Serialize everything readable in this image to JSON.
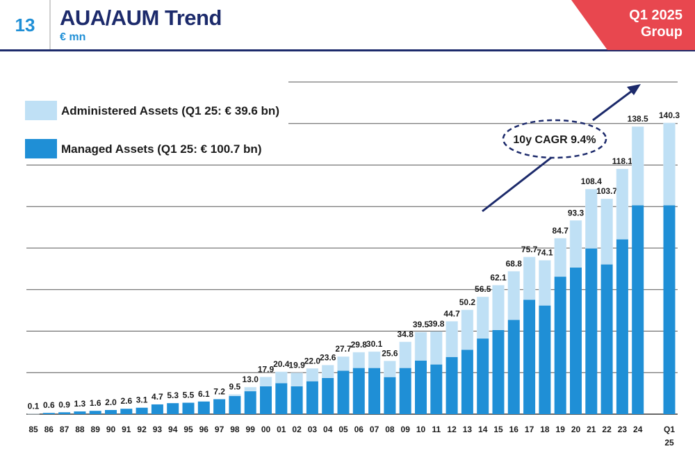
{
  "header": {
    "page_number": "13",
    "title": "AUA/AUM Trend",
    "subtitle": "€ mn",
    "badge_line1": "Q1 2025",
    "badge_line2": "Group"
  },
  "colors": {
    "navy": "#1c2a6b",
    "accent_blue": "#1f8fd6",
    "badge_red": "#e8474f",
    "managed": "#1f8fd6",
    "administered": "#bfe0f5"
  },
  "chart_data": {
    "type": "bar",
    "stacked": true,
    "title": "AUA/AUM Trend",
    "ylabel": "€ mn",
    "xlabel": "",
    "ylim": [
      0,
      160
    ],
    "grid": true,
    "legend_position": "top-left",
    "categories": [
      "85",
      "86",
      "87",
      "88",
      "89",
      "90",
      "91",
      "92",
      "93",
      "94",
      "95",
      "96",
      "97",
      "98",
      "99",
      "00",
      "01",
      "02",
      "03",
      "04",
      "05",
      "06",
      "07",
      "08",
      "09",
      "10",
      "11",
      "12",
      "13",
      "14",
      "15",
      "16",
      "17",
      "18",
      "19",
      "20",
      "21",
      "22",
      "23",
      "24",
      "Q1 25"
    ],
    "totals": [
      0.1,
      0.6,
      0.9,
      1.3,
      1.6,
      2.0,
      2.6,
      3.1,
      4.7,
      5.3,
      5.5,
      6.1,
      7.2,
      9.5,
      13.0,
      17.9,
      20.4,
      19.9,
      22.0,
      23.6,
      27.7,
      29.8,
      30.1,
      25.6,
      34.8,
      39.5,
      39.8,
      44.7,
      50.2,
      56.5,
      62.1,
      68.8,
      75.7,
      74.1,
      84.7,
      93.3,
      108.4,
      103.7,
      118.1,
      138.5,
      140.3
    ],
    "series": [
      {
        "name": "Managed Assets (Q1 25: € 100.7 bn)",
        "values": [
          0,
          0.6,
          0.9,
          1.3,
          1.6,
          2.0,
          2.6,
          3.1,
          4.7,
          5.3,
          5.5,
          6.1,
          7.2,
          8.8,
          11.1,
          13.5,
          15.0,
          13.5,
          15.9,
          17.5,
          21.0,
          22.3,
          22.3,
          17.9,
          22.3,
          25.9,
          24.0,
          27.6,
          31.1,
          36.5,
          40.6,
          45.5,
          55.2,
          52.4,
          66.3,
          70.7,
          79.9,
          72.2,
          84.3,
          100.7,
          100.7
        ]
      },
      {
        "name": "Administered Assets (Q1 25: € 39.6 bn)",
        "values": [
          0.1,
          0,
          0,
          0,
          0,
          0,
          0,
          0,
          0,
          0,
          0,
          0,
          0,
          0.7,
          1.9,
          4.4,
          5.4,
          6.4,
          6.1,
          6.1,
          6.7,
          7.5,
          7.8,
          7.7,
          12.5,
          13.6,
          15.8,
          17.1,
          19.1,
          20.0,
          21.5,
          23.3,
          20.5,
          21.7,
          18.4,
          22.6,
          28.5,
          31.5,
          33.8,
          37.8,
          39.6
        ]
      }
    ],
    "annotations": [
      {
        "text": "10y CAGR 9.4%"
      }
    ]
  }
}
